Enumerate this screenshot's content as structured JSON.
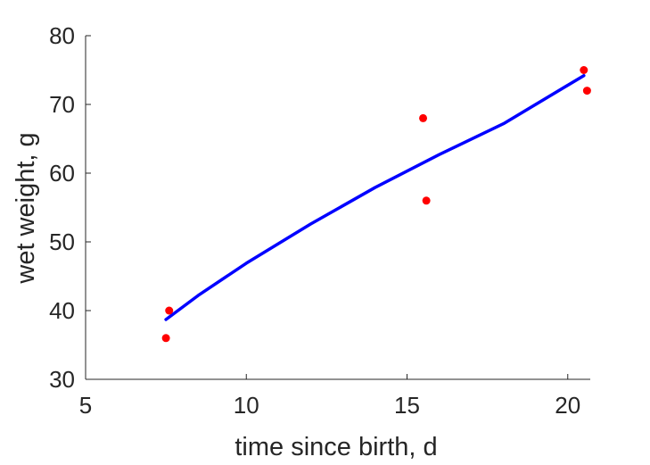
{
  "chart_data": {
    "type": "scatter",
    "title": "",
    "xlabel": "time since birth, d",
    "ylabel": "wet weight, g",
    "xlim": [
      5,
      20.7
    ],
    "ylim": [
      30,
      80
    ],
    "xticks": [
      "5",
      "10",
      "15",
      "20"
    ],
    "yticks": [
      "30",
      "40",
      "50",
      "60",
      "70",
      "80"
    ],
    "grid": false,
    "colors": {
      "points": "#ff0000",
      "fit_line": "#0000ff",
      "axes": "#262626"
    },
    "series": [
      {
        "kind": "points",
        "x": [
          7.5,
          7.6,
          15.5,
          15.6,
          20.5,
          20.6
        ],
        "y": [
          36,
          40,
          68,
          56,
          75,
          72
        ]
      },
      {
        "kind": "fit_line",
        "x": [
          7.5,
          8.5,
          10,
          12,
          14,
          16,
          18,
          20.5
        ],
        "y": [
          38.7,
          42.2,
          46.9,
          52.6,
          57.9,
          62.7,
          67.2,
          74.2
        ]
      }
    ]
  }
}
